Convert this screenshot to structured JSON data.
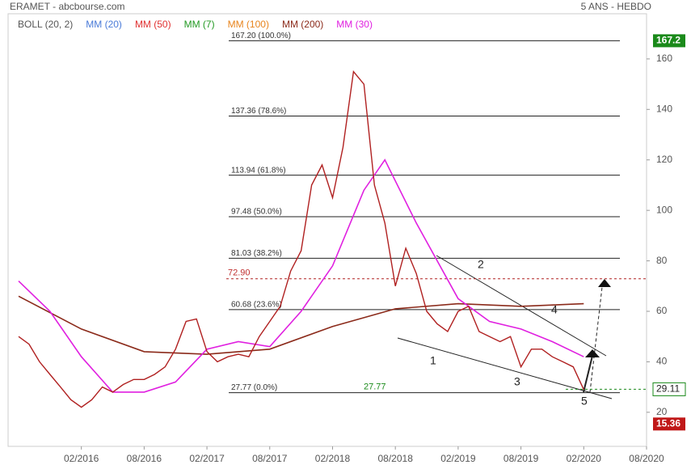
{
  "chart_data": {
    "type": "line",
    "title": "ERAMET - abcbourse.com",
    "subtitle": "5 ANS - HEBDO",
    "xlim": [
      "07/2015",
      "08/2020"
    ],
    "xticks": [
      "02/2016",
      "08/2016",
      "02/2017",
      "08/2017",
      "02/2018",
      "08/2018",
      "02/2019",
      "08/2019",
      "02/2020",
      "08/2020"
    ],
    "ylim": [
      6.5,
      177.9
    ],
    "yticks": [
      20,
      40,
      60,
      80,
      100,
      120,
      140,
      160
    ],
    "indicators": [
      {
        "name": "BOLL (20, 2)",
        "color": "#555555"
      },
      {
        "name": "MM (20)",
        "color": "#4a7bd8"
      },
      {
        "name": "MM (50)",
        "color": "#e03030"
      },
      {
        "name": "MM (7)",
        "color": "#229922"
      },
      {
        "name": "MM (100)",
        "color": "#e8841c"
      },
      {
        "name": "MM (200)",
        "color": "#8b2a1a"
      },
      {
        "name": "MM (30)",
        "color": "#e020e0"
      }
    ],
    "close": {
      "color": "#b02020",
      "x": [
        "08/2015",
        "09/2015",
        "10/2015",
        "11/2015",
        "12/2015",
        "01/2016",
        "02/2016",
        "03/2016",
        "04/2016",
        "05/2016",
        "06/2016",
        "07/2016",
        "08/2016",
        "09/2016",
        "10/2016",
        "11/2016",
        "12/2016",
        "01/2017",
        "02/2017",
        "03/2017",
        "04/2017",
        "05/2017",
        "06/2017",
        "07/2017",
        "08/2017",
        "09/2017",
        "10/2017",
        "11/2017",
        "12/2017",
        "01/2018",
        "02/2018",
        "03/2018",
        "04/2018",
        "05/2018",
        "06/2018",
        "07/2018",
        "08/2018",
        "09/2018",
        "10/2018",
        "11/2018",
        "12/2018",
        "01/2019",
        "02/2019",
        "03/2019",
        "04/2019",
        "05/2019",
        "06/2019",
        "07/2019",
        "08/2019",
        "09/2019",
        "10/2019",
        "11/2019",
        "12/2019",
        "01/2020",
        "02/2020"
      ],
      "values": [
        50,
        47,
        40,
        35,
        30,
        25,
        22,
        25,
        30,
        28,
        31,
        33,
        33,
        35,
        38,
        45,
        56,
        57,
        44,
        40,
        42,
        43,
        42,
        50,
        56,
        62,
        76,
        84,
        110,
        118,
        105,
        125,
        155,
        150,
        110,
        95,
        70,
        85,
        75,
        60,
        55,
        52,
        60,
        62,
        52,
        50,
        48,
        50,
        38,
        45,
        45,
        42,
        40,
        38,
        29
      ]
    },
    "series": [
      {
        "name": "MM (200)",
        "color": "#8b2a1a",
        "x": [
          "08/2015",
          "02/2016",
          "08/2016",
          "02/2017",
          "08/2017",
          "02/2018",
          "08/2018",
          "02/2019",
          "08/2019",
          "02/2020"
        ],
        "values": [
          66,
          53,
          44,
          43,
          45,
          54,
          61,
          63,
          62,
          63
        ]
      },
      {
        "name": "MM (30)",
        "color": "#e020e0",
        "x": [
          "08/2015",
          "11/2015",
          "02/2016",
          "05/2016",
          "08/2016",
          "11/2016",
          "02/2017",
          "05/2017",
          "08/2017",
          "11/2017",
          "02/2018",
          "05/2018",
          "07/2018",
          "10/2018",
          "02/2019",
          "05/2019",
          "08/2019",
          "11/2019",
          "02/2020"
        ],
        "values": [
          72,
          60,
          42,
          28,
          28,
          32,
          45,
          48,
          46,
          60,
          78,
          108,
          120,
          95,
          65,
          56,
          53,
          48,
          42
        ]
      }
    ],
    "fib_levels": [
      {
        "value": 167.2,
        "label": "167.20  (100.0%)"
      },
      {
        "value": 137.36,
        "label": "137.36  (78.6%)"
      },
      {
        "value": 113.94,
        "label": "113.94  (61.8%)"
      },
      {
        "value": 97.48,
        "label": "97.48  (50.0%)"
      },
      {
        "value": 81.03,
        "label": "81.03  (38.2%)"
      },
      {
        "value": 60.68,
        "label": "60.68  (23.6%)"
      },
      {
        "value": 27.77,
        "label": "27.77  (0.0%)"
      }
    ],
    "annotations": {
      "resistance": {
        "value": 72.9,
        "label": "72.90"
      },
      "support_label": {
        "value": 27.77,
        "label": "27.77"
      },
      "waves": [
        "1",
        "2",
        "3",
        "4",
        "5"
      ]
    },
    "price_tags": [
      {
        "value": 167.2,
        "label": "167.2",
        "color": "#1a8a1a"
      },
      {
        "value": 29.11,
        "label": "29.11",
        "color": "#1a8a1a"
      },
      {
        "value": 15.36,
        "label": "15.36",
        "color": "#c01818"
      }
    ]
  }
}
